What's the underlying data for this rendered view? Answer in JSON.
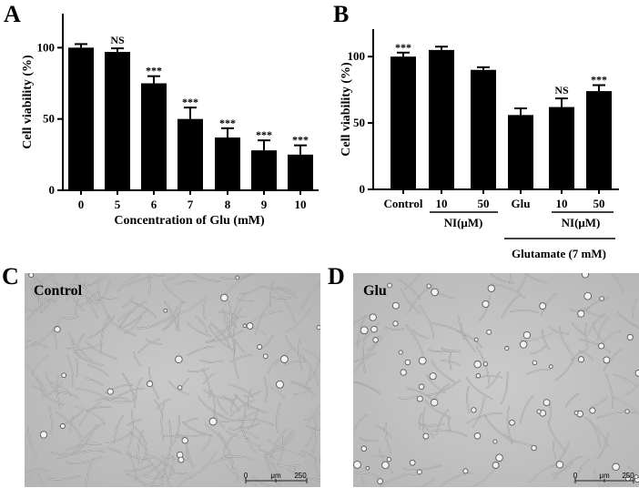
{
  "panel_labels": {
    "a": "A",
    "b": "B",
    "c": "C",
    "d": "D"
  },
  "chart_data": [
    {
      "panel": "A",
      "type": "bar",
      "categories": [
        "0",
        "5",
        "6",
        "7",
        "8",
        "9",
        "10"
      ],
      "values": [
        100,
        97,
        75,
        50,
        37,
        28,
        25
      ],
      "errors": [
        2.5,
        2.5,
        5,
        8,
        6.5,
        7,
        6.5
      ],
      "significance": [
        "",
        "NS",
        "***",
        "***",
        "***",
        "***",
        "***"
      ],
      "xlabel": "Concentration of Glu (mM)",
      "ylabel": "Cell viability (%)",
      "yticks": [
        0,
        50,
        100
      ],
      "ylim": [
        0,
        120
      ],
      "grid": false
    },
    {
      "panel": "B",
      "type": "bar",
      "categories": [
        "Control",
        "10",
        "50",
        "Glu",
        "10",
        "50"
      ],
      "values": [
        100,
        105,
        90,
        56,
        62,
        74
      ],
      "errors": [
        3,
        2.5,
        2,
        5,
        6.5,
        4.5
      ],
      "significance": [
        "***",
        "",
        "",
        "",
        "NS",
        "***"
      ],
      "ylabel": "Cell viability (%)",
      "yticks": [
        0,
        50,
        100
      ],
      "ylim": [
        0,
        120
      ],
      "grid": false,
      "brackets": {
        "ni_left": "NI(μM)",
        "ni_right": "NI(μM)",
        "glutamate": "Glutamate (7 mM)"
      }
    }
  ],
  "micrographs": {
    "c": {
      "label": "Control",
      "scale_bar": {
        "start": "0",
        "unit": "μm",
        "end": "250"
      },
      "cell_density": 0.95
    },
    "d": {
      "label": "Glu",
      "scale_bar": {
        "start": "0",
        "unit": "μm",
        "end": "250"
      },
      "cell_density": 0.45
    }
  }
}
